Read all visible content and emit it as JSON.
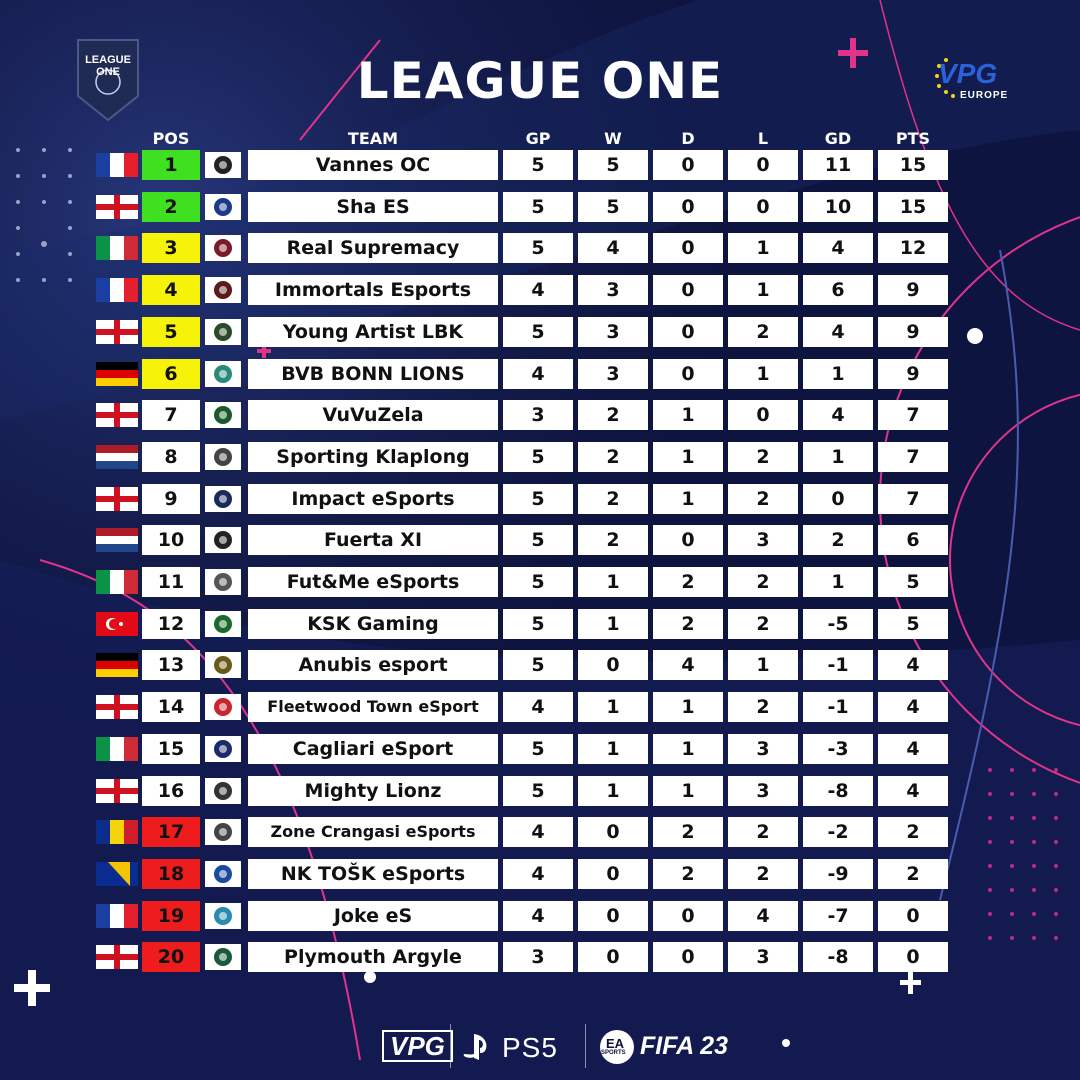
{
  "title": "LEAGUE ONE",
  "badge_text": "LEAGUE ONE",
  "logo_text": "VPG",
  "logo_sub": "EUROPE",
  "headers": {
    "pos": "POS",
    "team": "TEAM",
    "gp": "GP",
    "w": "W",
    "d": "D",
    "l": "L",
    "gd": "GD",
    "pts": "PTS"
  },
  "colors": {
    "promotion": "#3ee01f",
    "playoff": "#f6f20a",
    "relegation": "#ee1c1c",
    "neutral": "#ffffff"
  },
  "rows": [
    {
      "pos": "1",
      "team": "Vannes OC",
      "gp": "5",
      "w": "5",
      "d": "0",
      "l": "0",
      "gd": "11",
      "pts": "15",
      "flag": "fr",
      "zone": "promotion"
    },
    {
      "pos": "2",
      "team": "Sha ES",
      "gp": "5",
      "w": "5",
      "d": "0",
      "l": "0",
      "gd": "10",
      "pts": "15",
      "flag": "en",
      "zone": "promotion"
    },
    {
      "pos": "3",
      "team": "Real Supremacy",
      "gp": "5",
      "w": "4",
      "d": "0",
      "l": "1",
      "gd": "4",
      "pts": "12",
      "flag": "it",
      "zone": "playoff"
    },
    {
      "pos": "4",
      "team": "Immortals Esports",
      "gp": "4",
      "w": "3",
      "d": "0",
      "l": "1",
      "gd": "6",
      "pts": "9",
      "flag": "fr",
      "zone": "playoff"
    },
    {
      "pos": "5",
      "team": "Young Artist LBK",
      "gp": "5",
      "w": "3",
      "d": "0",
      "l": "2",
      "gd": "4",
      "pts": "9",
      "flag": "en",
      "zone": "playoff"
    },
    {
      "pos": "6",
      "team": "BVB BONN LIONS",
      "gp": "4",
      "w": "3",
      "d": "0",
      "l": "1",
      "gd": "1",
      "pts": "9",
      "flag": "de",
      "zone": "playoff"
    },
    {
      "pos": "7",
      "team": "VuVuZela",
      "gp": "3",
      "w": "2",
      "d": "1",
      "l": "0",
      "gd": "4",
      "pts": "7",
      "flag": "en",
      "zone": "neutral"
    },
    {
      "pos": "8",
      "team": "Sporting Klaplong",
      "gp": "5",
      "w": "2",
      "d": "1",
      "l": "2",
      "gd": "1",
      "pts": "7",
      "flag": "nl",
      "zone": "neutral"
    },
    {
      "pos": "9",
      "team": "Impact eSports",
      "gp": "5",
      "w": "2",
      "d": "1",
      "l": "2",
      "gd": "0",
      "pts": "7",
      "flag": "en",
      "zone": "neutral"
    },
    {
      "pos": "10",
      "team": "Fuerta XI",
      "gp": "5",
      "w": "2",
      "d": "0",
      "l": "3",
      "gd": "2",
      "pts": "6",
      "flag": "nl",
      "zone": "neutral"
    },
    {
      "pos": "11",
      "team": "Fut&Me eSports",
      "gp": "5",
      "w": "1",
      "d": "2",
      "l": "2",
      "gd": "1",
      "pts": "5",
      "flag": "it",
      "zone": "neutral"
    },
    {
      "pos": "12",
      "team": "KSK Gaming",
      "gp": "5",
      "w": "1",
      "d": "2",
      "l": "2",
      "gd": "-5",
      "pts": "5",
      "flag": "tr",
      "zone": "neutral"
    },
    {
      "pos": "13",
      "team": "Anubis esport",
      "gp": "5",
      "w": "0",
      "d": "4",
      "l": "1",
      "gd": "-1",
      "pts": "4",
      "flag": "de",
      "zone": "neutral"
    },
    {
      "pos": "14",
      "team": "Fleetwood Town eSport",
      "gp": "4",
      "w": "1",
      "d": "1",
      "l": "2",
      "gd": "-1",
      "pts": "4",
      "flag": "en",
      "zone": "neutral"
    },
    {
      "pos": "15",
      "team": "Cagliari eSport",
      "gp": "5",
      "w": "1",
      "d": "1",
      "l": "3",
      "gd": "-3",
      "pts": "4",
      "flag": "it",
      "zone": "neutral"
    },
    {
      "pos": "16",
      "team": "Mighty Lionz",
      "gp": "5",
      "w": "1",
      "d": "1",
      "l": "3",
      "gd": "-8",
      "pts": "4",
      "flag": "en",
      "zone": "neutral"
    },
    {
      "pos": "17",
      "team": "Zone Crangasi eSports",
      "gp": "4",
      "w": "0",
      "d": "2",
      "l": "2",
      "gd": "-2",
      "pts": "2",
      "flag": "ro",
      "zone": "relegation"
    },
    {
      "pos": "18",
      "team": "NK TOŠK eSports",
      "gp": "4",
      "w": "0",
      "d": "2",
      "l": "2",
      "gd": "-9",
      "pts": "2",
      "flag": "ba",
      "zone": "relegation"
    },
    {
      "pos": "19",
      "team": "Joke eS",
      "gp": "4",
      "w": "0",
      "d": "0",
      "l": "4",
      "gd": "-7",
      "pts": "0",
      "flag": "fr",
      "zone": "relegation"
    },
    {
      "pos": "20",
      "team": "Plymouth Argyle",
      "gp": "3",
      "w": "0",
      "d": "0",
      "l": "3",
      "gd": "-8",
      "pts": "0",
      "flag": "en",
      "zone": "relegation"
    }
  ],
  "footer": {
    "vpg": "VPG",
    "ps5": "PS5",
    "ea": "EA",
    "sports": "SPORTS",
    "fifa": "FIFA 23"
  }
}
